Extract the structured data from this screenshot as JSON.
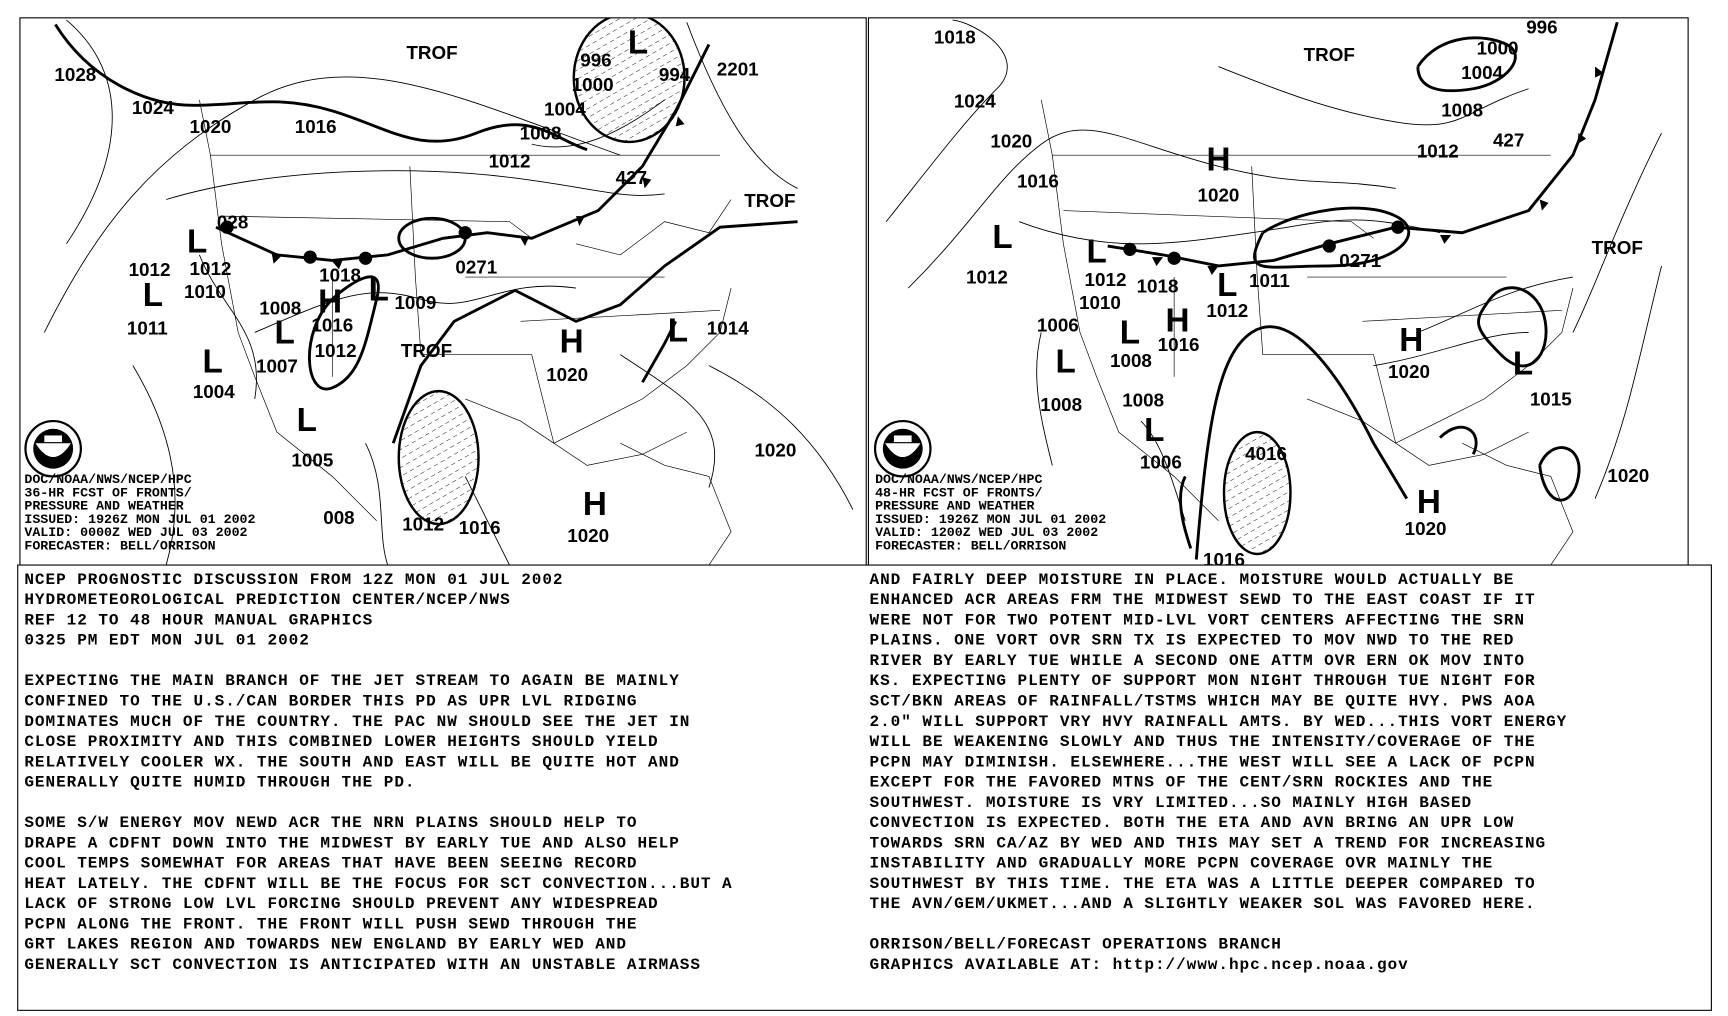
{
  "maps": [
    {
      "id": "36hr",
      "title_block": [
        "DOC/NOAA/NWS/NCEP/HPC",
        "36-HR FCST OF FRONTS/",
        "PRESSURE AND WEATHER",
        "ISSUED: 1926Z MON JUL 01 2002",
        "VALID: 0000Z WED JUL 03 2002",
        "FORECASTER: BELL/ORRISON"
      ],
      "labels": [
        "1028",
        "1024",
        "1020",
        "1016",
        "TROF",
        "996",
        "1000",
        "994",
        "2201",
        "1004",
        "1008",
        "1012",
        "427",
        "TROF",
        "028",
        "1012",
        "1012",
        "1010",
        "1008",
        "1018",
        "1016",
        "1009",
        "0271",
        "1011",
        "1012",
        "TROF",
        "1007",
        "1004",
        "1020",
        "1014",
        "1005",
        "1020",
        "008",
        "1012",
        "1016",
        "1020"
      ],
      "centers": [
        "L",
        "L",
        "L",
        "H",
        "L",
        "L",
        "L",
        "L",
        "H",
        "L",
        "H"
      ]
    },
    {
      "id": "48hr",
      "title_block": [
        "DOC/NOAA/NWS/NCEP/HPC",
        "48-HR FCST OF FRONTS/",
        "PRESSURE AND WEATHER",
        "ISSUED: 1926Z MON JUL 01 2002",
        "VALID: 1200Z WED JUL 03 2002",
        "FORECASTER: BELL/ORRISON"
      ],
      "labels": [
        "1018",
        "1024",
        "1020",
        "1016",
        "TROF",
        "996",
        "1000",
        "1004",
        "1008",
        "1012",
        "427",
        "TROF",
        "1012",
        "1012",
        "1010",
        "1006",
        "1008",
        "1018",
        "1012",
        "1011",
        "0271",
        "1016",
        "1020",
        "1020",
        "1015",
        "1008",
        "1008",
        "1006",
        "4016",
        "1020",
        "1020",
        "1016"
      ],
      "centers": [
        "L",
        "L",
        "L",
        "L",
        "H",
        "L",
        "L",
        "H",
        "H",
        "L",
        "H"
      ]
    }
  ],
  "discussion": {
    "left_lines": [
      "NCEP PROGNOSTIC DISCUSSION FROM 12Z MON 01 JUL 2002",
      "HYDROMETEOROLOGICAL PREDICTION CENTER/NCEP/NWS",
      "REF 12 TO 48 HOUR MANUAL GRAPHICS",
      "0325 PM EDT MON JUL 01 2002",
      "",
      "EXPECTING THE MAIN BRANCH OF THE JET STREAM TO AGAIN BE MAINLY",
      "CONFINED TO THE U.S./CAN BORDER THIS PD AS UPR LVL RIDGING",
      "DOMINATES MUCH OF THE COUNTRY. THE PAC NW SHOULD SEE THE JET IN",
      "CLOSE PROXIMITY AND THIS COMBINED LOWER HEIGHTS SHOULD YIELD",
      "RELATIVELY COOLER WX. THE SOUTH AND EAST WILL BE QUITE HOT AND",
      "GENERALLY QUITE HUMID THROUGH THE PD.",
      "",
      "SOME S/W ENERGY MOV NEWD ACR THE NRN PLAINS SHOULD HELP TO",
      "DRAPE A CDFNT DOWN INTO THE MIDWEST BY EARLY TUE AND ALSO HELP",
      "COOL TEMPS SOMEWHAT FOR AREAS THAT HAVE BEEN SEEING RECORD",
      "HEAT LATELY. THE CDFNT WILL BE THE FOCUS FOR SCT CONVECTION...BUT A",
      "LACK OF STRONG LOW LVL FORCING SHOULD PREVENT ANY WIDESPREAD",
      "PCPN ALONG THE FRONT. THE FRONT WILL PUSH SEWD THROUGH THE",
      "GRT LAKES REGION AND TOWARDS NEW ENGLAND BY EARLY WED AND",
      "GENERALLY SCT CONVECTION IS ANTICIPATED WITH AN UNSTABLE AIRMASS"
    ],
    "right_lines": [
      "AND FAIRLY DEEP MOISTURE IN PLACE. MOISTURE WOULD ACTUALLY BE",
      "ENHANCED ACR AREAS FRM THE MIDWEST SEWD TO THE EAST COAST IF IT",
      "WERE NOT FOR TWO POTENT MID-LVL VORT CENTERS AFFECTING THE SRN",
      "PLAINS. ONE VORT OVR SRN TX IS EXPECTED TO MOV NWD TO THE RED",
      "RIVER BY EARLY TUE WHILE A SECOND ONE ATTM OVR ERN OK MOV INTO",
      "KS. EXPECTING PLENTY OF SUPPORT MON NIGHT THROUGH TUE NIGHT FOR",
      "SCT/BKN AREAS OF RAINFALL/TSTMS WHICH MAY BE QUITE HVY. PWS AOA",
      "2.0\" WILL SUPPORT VRY HVY RAINFALL AMTS. BY WED...THIS VORT ENERGY",
      "WILL BE WEAKENING SLOWLY AND THUS THE INTENSITY/COVERAGE OF THE",
      "PCPN MAY DIMINISH. ELSEWHERE...THE WEST WILL SEE A LACK OF PCPN",
      "EXCEPT FOR THE FAVORED MTNS OF THE CENT/SRN ROCKIES AND THE",
      "SOUTHWEST. MOISTURE IS VRY LIMITED...SO MAINLY HIGH BASED",
      "CONVECTION IS EXPECTED. BOTH THE ETA AND AVN BRING AN UPR LOW",
      "TOWARDS SRN CA/AZ BY WED AND THIS MAY SET A TREND FOR INCREASING",
      "INSTABILITY AND GRADUALLY MORE PCPN COVERAGE OVR MAINLY THE",
      "SOUTHWEST BY THIS TIME. THE ETA WAS A LITTLE DEEPER COMPARED TO",
      "THE AVN/GEM/UKMET...AND A SLIGHTLY WEAKER SOL WAS FAVORED HERE.",
      "",
      "ORRISON/BELL/FORECAST OPERATIONS BRANCH",
      "GRAPHICS AVAILABLE AT: http://www.hpc.ncep.noaa.gov"
    ]
  }
}
